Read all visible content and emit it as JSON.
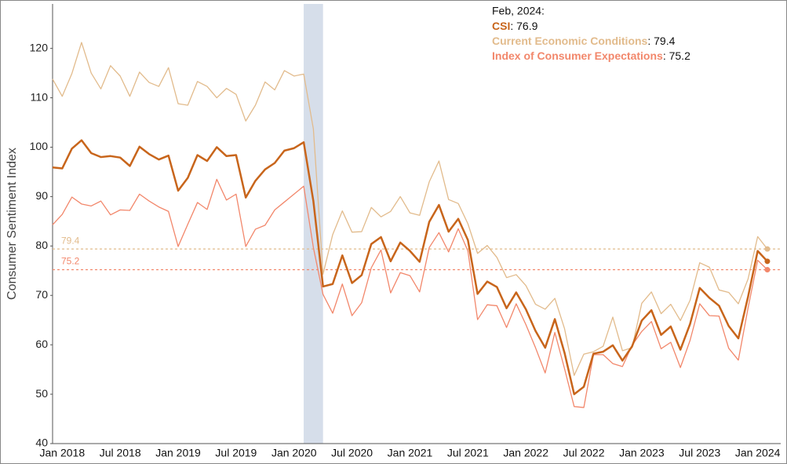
{
  "chart_data": {
    "type": "line",
    "y_axis_label": "Consumer Sentiment Index",
    "categories": [
      null,
      "Jan 2018",
      null,
      null,
      null,
      null,
      null,
      "Jul 2018",
      null,
      null,
      null,
      null,
      null,
      "Jan 2019",
      null,
      null,
      null,
      null,
      null,
      "Jul 2019",
      null,
      null,
      null,
      null,
      null,
      "Jan 2020",
      null,
      null,
      null,
      null,
      null,
      "Jul 2020",
      null,
      null,
      null,
      null,
      null,
      "Jan 2021",
      null,
      null,
      null,
      null,
      null,
      "Jul 2021",
      null,
      null,
      null,
      null,
      null,
      "Jan 2022",
      null,
      null,
      null,
      null,
      null,
      "Jul 2022",
      null,
      null,
      null,
      null,
      null,
      "Jan 2023",
      null,
      null,
      null,
      null,
      null,
      "Jul 2023",
      null,
      null,
      null,
      null,
      null,
      "Jan 2024",
      null
    ],
    "series": [
      {
        "name": "Current Economic Conditions",
        "color": "#e2bb8c",
        "width": 1.3,
        "values": [
          113.8,
          110.3,
          114.9,
          121.2,
          115.0,
          111.8,
          116.5,
          114.4,
          110.3,
          115.2,
          113.1,
          112.3,
          116.1,
          108.8,
          108.5,
          113.3,
          112.3,
          110.0,
          111.9,
          110.7,
          105.3,
          108.5,
          113.2,
          111.6,
          115.5,
          114.4,
          114.8,
          103.7,
          74.3,
          82.3,
          87.1,
          82.8,
          82.9,
          87.8,
          85.9,
          87.0,
          90.0,
          86.7,
          86.2,
          93.0,
          97.2,
          89.4,
          88.6,
          84.5,
          78.5,
          80.1,
          77.7,
          73.6,
          74.2,
          72.0,
          68.2,
          67.2,
          69.4,
          63.3,
          53.8,
          58.1,
          58.6,
          59.7,
          65.6,
          58.8,
          59.4,
          68.4,
          70.7,
          66.3,
          68.2,
          64.9,
          69.0,
          76.6,
          75.7,
          71.1,
          70.6,
          68.3,
          73.3,
          81.9,
          79.4
        ]
      },
      {
        "name": "Index of Consumer Expectations",
        "color": "#f2876b",
        "width": 1.3,
        "values": [
          84.3,
          86.4,
          89.9,
          88.5,
          88.1,
          89.1,
          86.3,
          87.3,
          87.2,
          90.5,
          89.1,
          87.9,
          87.0,
          79.9,
          84.4,
          88.8,
          87.4,
          93.5,
          89.3,
          90.5,
          79.9,
          83.4,
          84.2,
          87.3,
          88.9,
          90.5,
          92.1,
          79.7,
          70.2,
          66.4,
          72.3,
          65.9,
          68.5,
          75.6,
          79.2,
          70.5,
          74.6,
          74.0,
          70.7,
          79.7,
          82.7,
          78.8,
          83.5,
          79.0,
          65.1,
          68.1,
          67.9,
          63.5,
          68.3,
          64.1,
          59.4,
          54.3,
          62.5,
          55.2,
          47.5,
          47.3,
          58.0,
          58.0,
          56.2,
          55.6,
          59.9,
          62.7,
          64.7,
          59.2,
          60.5,
          55.4,
          60.9,
          68.3,
          65.9,
          65.8,
          59.3,
          56.9,
          67.4,
          77.1,
          75.2
        ]
      },
      {
        "name": "CSI",
        "color": "#c8651b",
        "width": 2.5,
        "values": [
          95.9,
          95.7,
          99.7,
          101.4,
          98.8,
          98.0,
          98.2,
          97.9,
          96.2,
          100.1,
          98.6,
          97.5,
          98.3,
          91.2,
          93.8,
          98.4,
          97.2,
          100,
          98.2,
          98.4,
          89.8,
          93.2,
          95.5,
          96.8,
          99.3,
          99.8,
          101.0,
          89.1,
          71.8,
          72.3,
          78.1,
          72.5,
          74.1,
          80.4,
          81.8,
          76.9,
          80.7,
          79.0,
          76.8,
          84.9,
          88.3,
          82.9,
          85.5,
          81.2,
          70.3,
          72.8,
          71.7,
          67.4,
          70.6,
          67.2,
          62.8,
          59.4,
          65.2,
          58.4,
          50.0,
          51.5,
          58.2,
          58.6,
          59.9,
          56.8,
          59.7,
          64.9,
          67.0,
          62.0,
          63.7,
          59.0,
          64.2,
          71.5,
          69.5,
          67.9,
          63.8,
          61.3,
          69.7,
          79.0,
          76.9
        ]
      }
    ],
    "annotation": {
      "title": "Feb, 2024:",
      "separator": ": ",
      "order": [
        2,
        0,
        1
      ]
    },
    "reference_lines": [
      {
        "value": 79.4,
        "color": "#e2bb8c"
      },
      {
        "value": 75.2,
        "color": "#f2876b"
      }
    ],
    "shaded_x": [
      26,
      28
    ],
    "shade_color": "#d6deea",
    "ylim": [
      40,
      129
    ],
    "yticks": [
      40,
      50,
      60,
      70,
      80,
      90,
      100,
      110,
      120
    ],
    "grid": false
  }
}
